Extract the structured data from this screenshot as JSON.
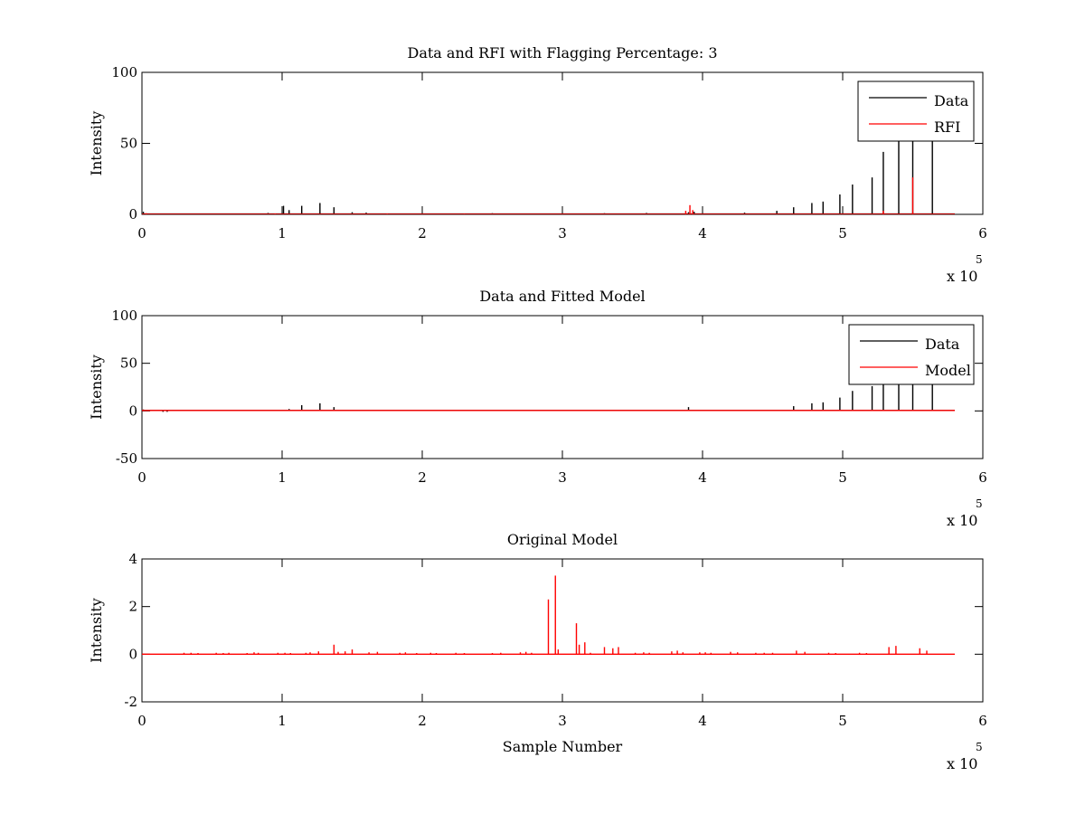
{
  "chart_data": [
    {
      "type": "line",
      "title": "Data and RFI with Flagging Percentage: 3",
      "xlabel": "",
      "ylabel": "Intensity",
      "xlim": [
        0,
        6
      ],
      "ylim": [
        0,
        100
      ],
      "xticks": [
        0,
        1,
        2,
        3,
        4,
        5,
        6
      ],
      "yticks": [
        0,
        50,
        100
      ],
      "x_multiplier": {
        "base": "x 10",
        "exponent": "5"
      },
      "x_unit_note": "x values in units of 10^5 samples",
      "baseline_end": 5.8,
      "legend": {
        "position": "top-right",
        "entries": [
          "Data",
          "RFI"
        ]
      },
      "series": [
        {
          "name": "Data",
          "color": "#000000",
          "baseline": 0.3,
          "spikes": [
            [
              0.01,
              1.8
            ],
            [
              0.9,
              1.0
            ],
            [
              1.01,
              6.0
            ],
            [
              1.05,
              3.0
            ],
            [
              1.14,
              6.0
            ],
            [
              1.27,
              8.0
            ],
            [
              1.37,
              5.0
            ],
            [
              1.5,
              1.5
            ],
            [
              1.6,
              1.2
            ],
            [
              2.5,
              0.8
            ],
            [
              3.3,
              0.8
            ],
            [
              3.6,
              1.0
            ],
            [
              3.9,
              1.5
            ],
            [
              3.94,
              1.8
            ],
            [
              4.3,
              1.2
            ],
            [
              4.53,
              2.5
            ],
            [
              4.65,
              5.0
            ],
            [
              4.78,
              8.0
            ],
            [
              4.86,
              9.0
            ],
            [
              4.98,
              14.0
            ],
            [
              5.07,
              21.0
            ],
            [
              5.21,
              26.0
            ],
            [
              5.29,
              44.0
            ],
            [
              5.4,
              52.0
            ],
            [
              5.5,
              52.0
            ],
            [
              5.64,
              52.0
            ]
          ]
        },
        {
          "name": "RFI",
          "color": "#ff0000",
          "baseline": 0.0,
          "spikes": [
            [
              0.03,
              0.8
            ],
            [
              0.95,
              0.6
            ],
            [
              1.75,
              0.6
            ],
            [
              2.3,
              0.5
            ],
            [
              3.88,
              2.5
            ],
            [
              3.91,
              6.5
            ],
            [
              3.93,
              3.0
            ],
            [
              5.29,
              2.5
            ],
            [
              5.5,
              26.0
            ]
          ]
        }
      ]
    },
    {
      "type": "line",
      "title": "Data and Fitted Model",
      "xlabel": "",
      "ylabel": "Intensity",
      "xlim": [
        0,
        6
      ],
      "ylim": [
        -50,
        100
      ],
      "xticks": [
        0,
        1,
        2,
        3,
        4,
        5,
        6
      ],
      "yticks": [
        -50,
        0,
        50,
        100
      ],
      "x_multiplier": {
        "base": "x 10",
        "exponent": "5"
      },
      "x_unit_note": "x values in units of 10^5 samples",
      "baseline_end": 5.8,
      "legend": {
        "position": "top-right",
        "entries": [
          "Data",
          "Model"
        ]
      },
      "series": [
        {
          "name": "Data",
          "color": "#000000",
          "baseline": 0.5,
          "spikes": [
            [
              0.01,
              1.5
            ],
            [
              0.15,
              -1.0
            ],
            [
              0.18,
              -1.0
            ],
            [
              1.05,
              2.0
            ],
            [
              1.14,
              6.0
            ],
            [
              1.27,
              8.0
            ],
            [
              1.37,
              4.0
            ],
            [
              3.9,
              4.0
            ],
            [
              4.65,
              5.0
            ],
            [
              4.78,
              8.0
            ],
            [
              4.86,
              9.0
            ],
            [
              4.98,
              14.0
            ],
            [
              5.07,
              21.0
            ],
            [
              5.21,
              26.0
            ],
            [
              5.29,
              30.0
            ],
            [
              5.4,
              30.0
            ],
            [
              5.5,
              30.0
            ],
            [
              5.64,
              30.0
            ]
          ]
        },
        {
          "name": "Model",
          "color": "#ff0000",
          "baseline": 0.5,
          "spikes": []
        }
      ]
    },
    {
      "type": "line",
      "title": "Original Model",
      "xlabel": "Sample Number",
      "ylabel": "Intensity",
      "xlim": [
        0,
        6
      ],
      "ylim": [
        -2,
        4
      ],
      "xticks": [
        0,
        1,
        2,
        3,
        4,
        5,
        6
      ],
      "yticks": [
        -2,
        0,
        2,
        4
      ],
      "x_multiplier": {
        "base": "x 10",
        "exponent": "5"
      },
      "x_unit_note": "x values in units of 10^5 samples",
      "baseline_end": 5.8,
      "legend": null,
      "series": [
        {
          "name": "",
          "color": "#ff0000",
          "baseline": 0.0,
          "spikes": [
            [
              0.3,
              0.06
            ],
            [
              0.35,
              0.06
            ],
            [
              0.4,
              0.05
            ],
            [
              0.53,
              0.06
            ],
            [
              0.58,
              0.05
            ],
            [
              0.62,
              0.06
            ],
            [
              0.75,
              0.05
            ],
            [
              0.8,
              0.08
            ],
            [
              0.83,
              0.06
            ],
            [
              0.97,
              0.06
            ],
            [
              1.02,
              0.06
            ],
            [
              1.06,
              0.05
            ],
            [
              1.17,
              0.06
            ],
            [
              1.2,
              0.08
            ],
            [
              1.26,
              0.12
            ],
            [
              1.37,
              0.4
            ],
            [
              1.4,
              0.1
            ],
            [
              1.45,
              0.12
            ],
            [
              1.5,
              0.2
            ],
            [
              1.62,
              0.08
            ],
            [
              1.68,
              0.1
            ],
            [
              1.84,
              0.06
            ],
            [
              1.88,
              0.08
            ],
            [
              1.96,
              0.05
            ],
            [
              2.06,
              0.06
            ],
            [
              2.1,
              0.05
            ],
            [
              2.24,
              0.06
            ],
            [
              2.3,
              0.05
            ],
            [
              2.5,
              0.05
            ],
            [
              2.56,
              0.06
            ],
            [
              2.7,
              0.08
            ],
            [
              2.74,
              0.1
            ],
            [
              2.78,
              0.06
            ],
            [
              2.9,
              2.3
            ],
            [
              2.95,
              3.3
            ],
            [
              2.97,
              0.2
            ],
            [
              3.1,
              1.3
            ],
            [
              3.12,
              0.4
            ],
            [
              3.16,
              0.5
            ],
            [
              3.2,
              0.06
            ],
            [
              3.3,
              0.3
            ],
            [
              3.36,
              0.25
            ],
            [
              3.4,
              0.3
            ],
            [
              3.52,
              0.06
            ],
            [
              3.58,
              0.08
            ],
            [
              3.62,
              0.06
            ],
            [
              3.78,
              0.12
            ],
            [
              3.82,
              0.15
            ],
            [
              3.86,
              0.08
            ],
            [
              3.98,
              0.08
            ],
            [
              4.02,
              0.08
            ],
            [
              4.06,
              0.06
            ],
            [
              4.2,
              0.1
            ],
            [
              4.25,
              0.08
            ],
            [
              4.38,
              0.06
            ],
            [
              4.44,
              0.06
            ],
            [
              4.5,
              0.06
            ],
            [
              4.67,
              0.15
            ],
            [
              4.73,
              0.1
            ],
            [
              4.9,
              0.06
            ],
            [
              4.95,
              0.05
            ],
            [
              5.12,
              0.06
            ],
            [
              5.17,
              0.05
            ],
            [
              5.33,
              0.3
            ],
            [
              5.38,
              0.35
            ],
            [
              5.55,
              0.25
            ],
            [
              5.6,
              0.15
            ]
          ]
        }
      ]
    }
  ]
}
